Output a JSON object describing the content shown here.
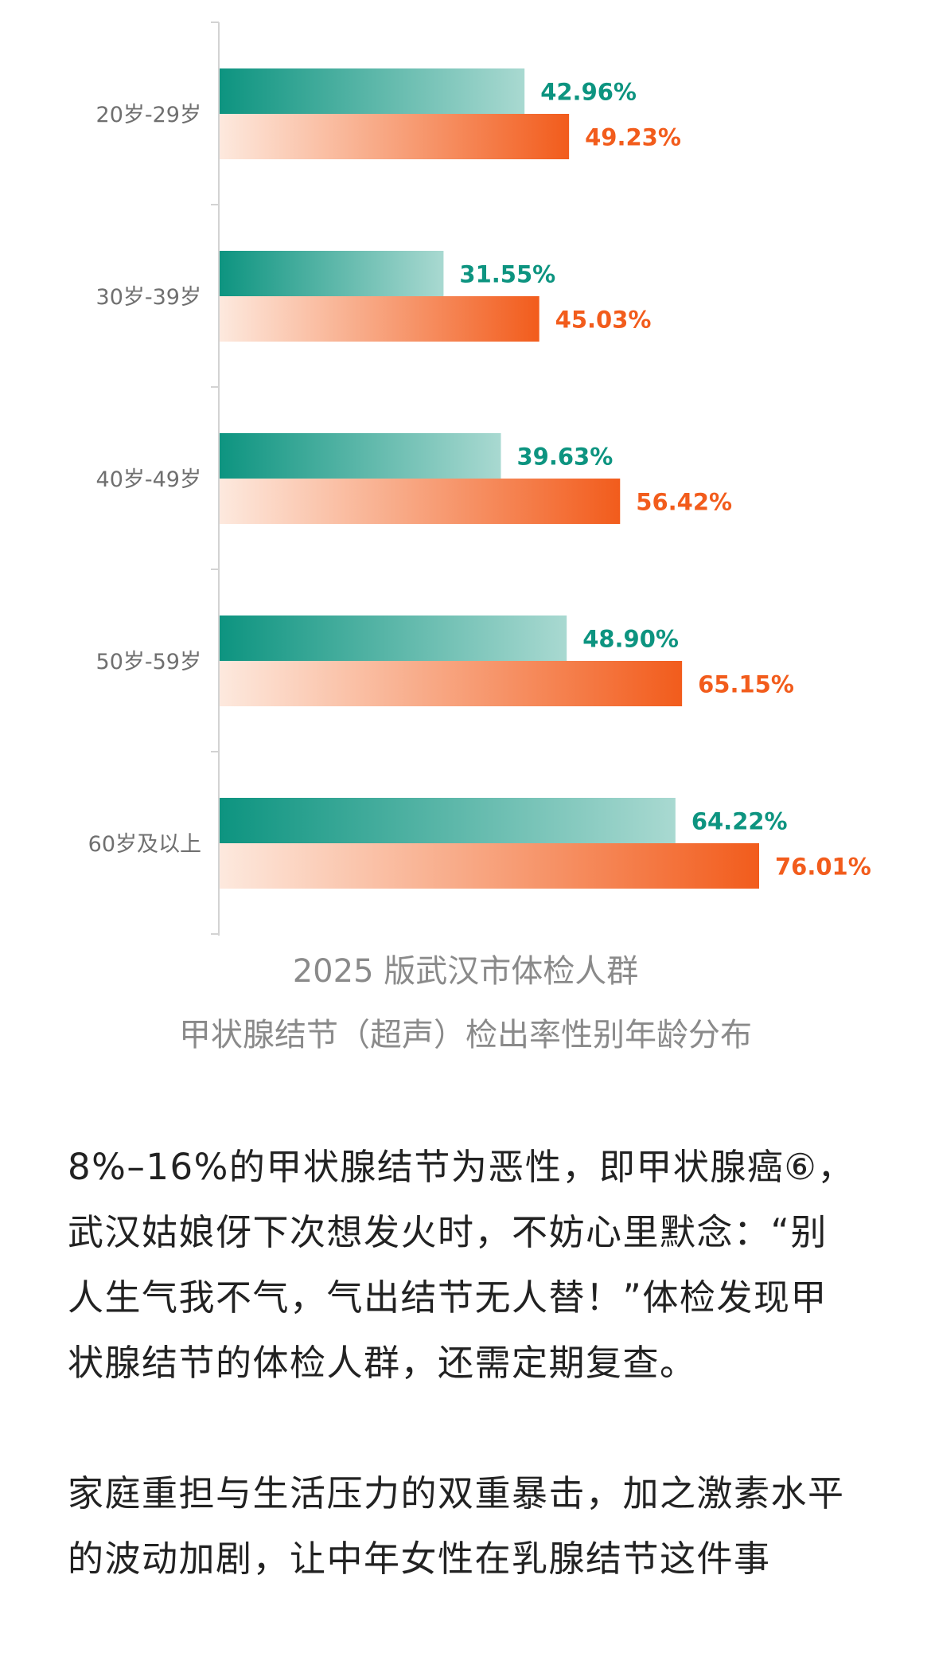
{
  "chart_data": {
    "type": "bar",
    "orientation": "horizontal",
    "categories": [
      "20岁-29岁",
      "30岁-39岁",
      "40岁-49岁",
      "50岁-59岁",
      "60岁及以上"
    ],
    "series": [
      {
        "name": "series-teal",
        "color": "#0d9480",
        "values": [
          42.96,
          31.55,
          39.63,
          48.9,
          64.22
        ],
        "labels": [
          "42.96%",
          "31.55%",
          "39.63%",
          "48.90%",
          "64.22%"
        ]
      },
      {
        "name": "series-orange",
        "color": "#f25c1c",
        "values": [
          49.23,
          45.03,
          56.42,
          65.15,
          76.01
        ],
        "labels": [
          "49.23%",
          "45.03%",
          "56.42%",
          "65.15%",
          "76.01%"
        ]
      }
    ],
    "xlim": [
      0,
      100
    ],
    "title_lines": [
      "2025 版武汉市体检人群",
      "甲状腺结节（超声）检出率性别年龄分布"
    ]
  },
  "colors": {
    "teal": "#0d9480",
    "teal_light": "#a9d9d1",
    "orange": "#f25c1c",
    "orange_light": "#fde9de",
    "axis": "#d3d3d3"
  },
  "article": {
    "paragraph1": "8%–16%的甲状腺结节为恶性，即甲状腺癌⑥，武汉姑娘伢下次想发火时，不妨心里默念：“别人生气我不气，气出结节无人替！”体检发现甲状腺结节的体检人群，还需定期复查。",
    "paragraph2": "家庭重担与生活压力的双重暴击，加之激素水平的波动加剧，让中年女性在乳腺结节这件事"
  }
}
